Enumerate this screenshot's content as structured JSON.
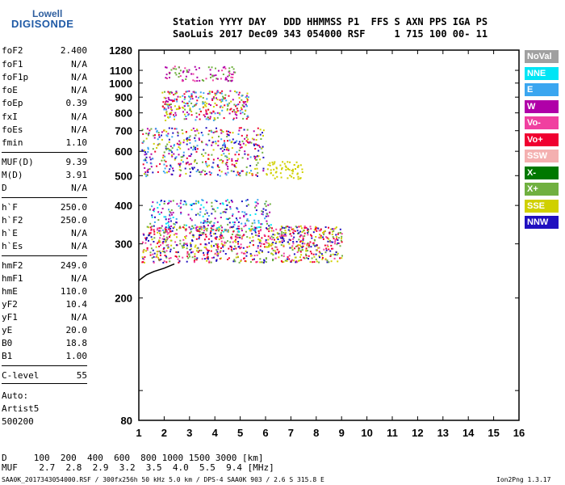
{
  "logo": {
    "line1": "Lowell",
    "line2": "DIGISONDE"
  },
  "header": {
    "row1": "Station YYYY DAY   DDD HHMMSS P1  FFS S AXN PPS IGA PS",
    "row2": "SaoLuis 2017 Dec09 343 054000 RSF     1 715 100 00- 11"
  },
  "params": [
    {
      "label": "foF2",
      "value": "2.400"
    },
    {
      "label": "foF1",
      "value": "N/A"
    },
    {
      "label": "foF1p",
      "value": "N/A"
    },
    {
      "label": "foE",
      "value": "N/A"
    },
    {
      "label": "foEp",
      "value": "0.39"
    },
    {
      "label": "fxI",
      "value": "N/A"
    },
    {
      "label": "foEs",
      "value": "N/A"
    },
    {
      "label": "fmin",
      "value": "1.10"
    },
    {
      "label": "MUF(D)",
      "value": "9.39"
    },
    {
      "label": "M(D)",
      "value": "3.91"
    },
    {
      "label": "D",
      "value": "N/A"
    },
    {
      "label": "h`F",
      "value": "250.0"
    },
    {
      "label": "h`F2",
      "value": "250.0"
    },
    {
      "label": "h`E",
      "value": "N/A"
    },
    {
      "label": "h`Es",
      "value": "N/A"
    },
    {
      "label": "hmF2",
      "value": "249.0"
    },
    {
      "label": "hmF1",
      "value": "N/A"
    },
    {
      "label": "hmE",
      "value": "110.0"
    },
    {
      "label": "yF2",
      "value": "10.4"
    },
    {
      "label": "yF1",
      "value": "N/A"
    },
    {
      "label": "yE",
      "value": "20.0"
    },
    {
      "label": "B0",
      "value": "18.8"
    },
    {
      "label": "B1",
      "value": "1.00"
    },
    {
      "label": "C-level",
      "value": "55"
    }
  ],
  "autoscale": {
    "line1": "Auto:",
    "line2": "Artist5",
    "line3": "500200"
  },
  "legend": [
    {
      "label": "NoVal",
      "color": "#a0a0a0"
    },
    {
      "label": "NNE",
      "color": "#00e5f5"
    },
    {
      "label": "E",
      "color": "#3aa6f0"
    },
    {
      "label": "W",
      "color": "#b000a8"
    },
    {
      "label": "Vo-",
      "color": "#f040a0"
    },
    {
      "label": "Vo+",
      "color": "#f00030"
    },
    {
      "label": "SSW",
      "color": "#f4b0b0"
    },
    {
      "label": "X-",
      "color": "#007800"
    },
    {
      "label": "X+",
      "color": "#70b040"
    },
    {
      "label": "SSE",
      "color": "#d0d000"
    },
    {
      "label": "NNW",
      "color": "#2010c0"
    }
  ],
  "footer": {
    "d_row": "D     100  200  400  600  800 1000 1500 3000 [km]",
    "muf_row": "MUF    2.7  2.8  2.9  3.2  3.5  4.0  5.5  9.4 [MHz]",
    "info": "SAA0K_2017343054000.RSF / 300fx256h 50 kHz 5.0 km / DPS-4 SAA0K 903 / 2.6 S 315.8 E",
    "version": "Ion2Png 1.3.17"
  },
  "chart_data": {
    "type": "scatter",
    "xlabel": "",
    "ylabel": "",
    "xlim": [
      1,
      16
    ],
    "ylim": [
      80,
      1280
    ],
    "y_scale": "log",
    "x_ticks": [
      1,
      2,
      3,
      4,
      5,
      6,
      7,
      8,
      9,
      10,
      11,
      12,
      13,
      14,
      15,
      16
    ],
    "y_ticks": [
      80,
      100,
      200,
      300,
      400,
      500,
      600,
      700,
      800,
      900,
      1000,
      1100,
      1280
    ],
    "y_tick_labels": [
      "80",
      "",
      "200",
      "300",
      "400",
      "500",
      "600",
      "700",
      "800",
      "900",
      "1000",
      "1100",
      "1280"
    ],
    "trace": {
      "name": "",
      "x": [
        1.0,
        1.3,
        1.6,
        2.0,
        2.4
      ],
      "y": [
        228,
        238,
        244,
        250,
        258
      ]
    },
    "echo_clusters": [
      {
        "name": "O-trace F2 first hop",
        "x_range": [
          1.1,
          9.0
        ],
        "y_range": [
          262,
          345
        ],
        "count": 900,
        "colors": [
          "#f00030",
          "#f040a0",
          "#d0d000",
          "#70b040",
          "#2010c0"
        ]
      },
      {
        "name": "Spread F",
        "x_range": [
          1.4,
          6.2
        ],
        "y_range": [
          330,
          420
        ],
        "count": 260,
        "colors": [
          "#3aa6f0",
          "#00e5f5",
          "#2010c0",
          "#70b040",
          "#b000a8"
        ]
      },
      {
        "name": "Second hop",
        "x_range": [
          1.1,
          5.9
        ],
        "y_range": [
          500,
          720
        ],
        "count": 450,
        "colors": [
          "#b000a8",
          "#f00030",
          "#3aa6f0",
          "#70b040",
          "#d0d000",
          "#2010c0"
        ]
      },
      {
        "name": "SSE cluster",
        "x_range": [
          6.0,
          7.5
        ],
        "y_range": [
          490,
          560
        ],
        "count": 60,
        "colors": [
          "#d0d000"
        ]
      },
      {
        "name": "Third hop",
        "x_range": [
          1.9,
          5.3
        ],
        "y_range": [
          760,
          950
        ],
        "count": 300,
        "colors": [
          "#b000a8",
          "#f00030",
          "#70b040",
          "#d0d000",
          "#3aa6f0"
        ]
      },
      {
        "name": "Fourth hop",
        "x_range": [
          2.0,
          4.8
        ],
        "y_range": [
          1020,
          1140
        ],
        "count": 90,
        "colors": [
          "#b000a8",
          "#f040a0",
          "#70b040"
        ]
      }
    ]
  }
}
